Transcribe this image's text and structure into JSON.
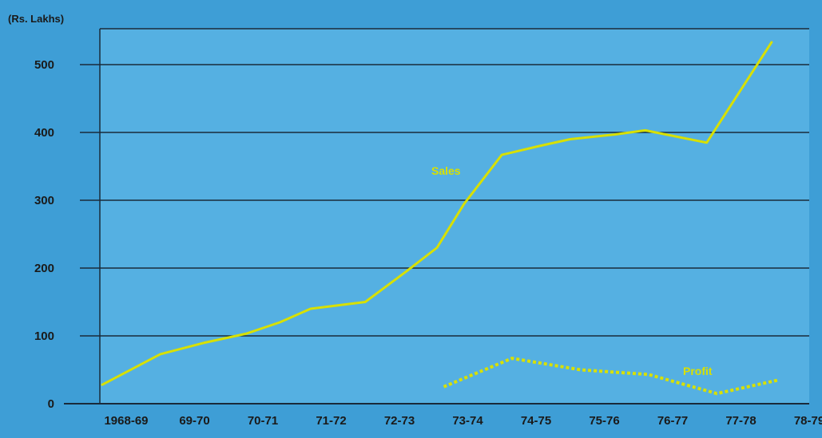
{
  "colors": {
    "background": "#3e9ed6",
    "plot_background": "#55b0e2",
    "grid": "#1a2a3a",
    "series": "#d8e000",
    "text": "#1a1a1a"
  },
  "chart_data": {
    "type": "line",
    "title": "",
    "xlabel": "",
    "ylabel": "(Rs. Lakhs)",
    "categories": [
      "1968-69",
      "69-70",
      "70-71",
      "71-72",
      "72-73",
      "73-74",
      "74-75",
      "75-76",
      "76-77",
      "77-78",
      "78-79"
    ],
    "ylim": [
      0,
      520
    ],
    "yticks": [
      0,
      100,
      200,
      300,
      400,
      500
    ],
    "grid": true,
    "legend": "none",
    "series": [
      {
        "name": "Sales",
        "style": "solid",
        "points": [
          {
            "x": 0.0,
            "y": 28
          },
          {
            "x": 0.85,
            "y": 73
          },
          {
            "x": 1.5,
            "y": 90
          },
          {
            "x": 2.1,
            "y": 103
          },
          {
            "x": 2.6,
            "y": 120
          },
          {
            "x": 3.05,
            "y": 140
          },
          {
            "x": 3.45,
            "y": 145
          },
          {
            "x": 3.85,
            "y": 150
          },
          {
            "x": 4.45,
            "y": 195
          },
          {
            "x": 4.9,
            "y": 230
          },
          {
            "x": 5.3,
            "y": 295
          },
          {
            "x": 5.85,
            "y": 367
          },
          {
            "x": 6.4,
            "y": 380
          },
          {
            "x": 6.85,
            "y": 390
          },
          {
            "x": 7.5,
            "y": 397
          },
          {
            "x": 7.95,
            "y": 403
          },
          {
            "x": 8.85,
            "y": 385
          },
          {
            "x": 9.8,
            "y": 533
          }
        ]
      },
      {
        "name": "Profit",
        "style": "dotted",
        "points": [
          {
            "x": 5.0,
            "y": 25
          },
          {
            "x": 6.0,
            "y": 67
          },
          {
            "x": 7.0,
            "y": 50
          },
          {
            "x": 8.0,
            "y": 43
          },
          {
            "x": 9.0,
            "y": 15
          },
          {
            "x": 9.9,
            "y": 35
          }
        ]
      }
    ]
  }
}
